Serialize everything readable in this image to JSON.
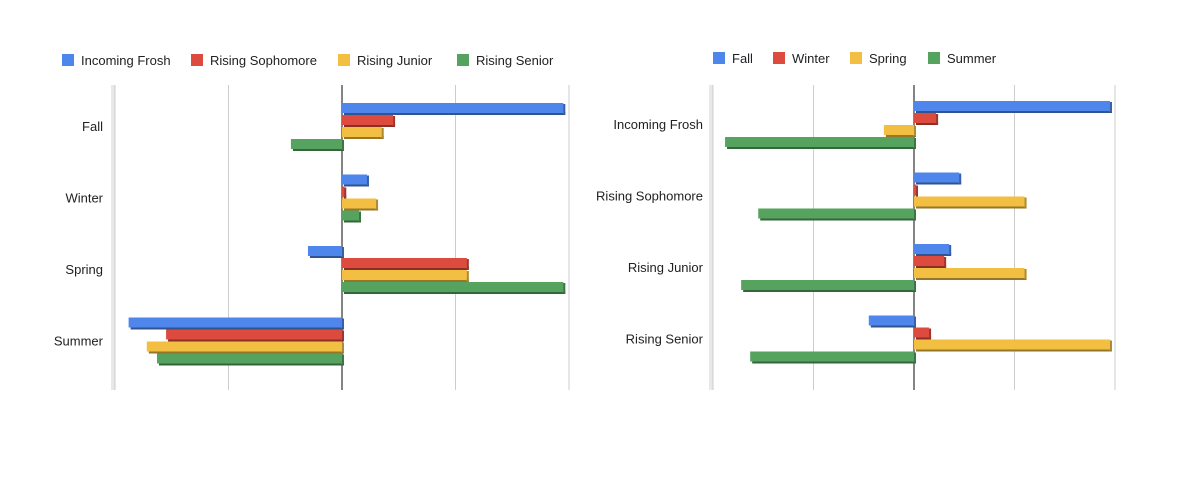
{
  "colors": {
    "blue": "#4e86ec",
    "red": "#dd4b3e",
    "yellow": "#f2bf42",
    "green": "#55a35e"
  },
  "chart_data": [
    {
      "type": "bar",
      "orientation": "horizontal",
      "style": "3d",
      "title": "",
      "xlabel": "",
      "ylabel": "",
      "legend_position": "top",
      "grid": true,
      "axis_tick_labels_shown": false,
      "xlim": [
        -2,
        2
      ],
      "categories": [
        "Fall",
        "Winter",
        "Spring",
        "Summer"
      ],
      "series": [
        {
          "name": "Incoming Frosh",
          "color": "#4e86ec",
          "values": [
            1.95,
            0.22,
            -0.3,
            -1.88
          ]
        },
        {
          "name": "Rising Sophomore",
          "color": "#dd4b3e",
          "values": [
            0.45,
            0.02,
            1.1,
            -1.55
          ]
        },
        {
          "name": "Rising Junior",
          "color": "#f2bf42",
          "values": [
            0.35,
            0.3,
            1.1,
            -1.72
          ]
        },
        {
          "name": "Rising Senior",
          "color": "#55a35e",
          "values": [
            -0.45,
            0.15,
            1.95,
            -1.63
          ]
        }
      ]
    },
    {
      "type": "bar",
      "orientation": "horizontal",
      "style": "3d",
      "title": "",
      "xlabel": "",
      "ylabel": "",
      "legend_position": "top",
      "grid": true,
      "axis_tick_labels_shown": false,
      "xlim": [
        -2,
        2
      ],
      "categories": [
        "Incoming Frosh",
        "Rising Sophomore",
        "Rising Junior",
        "Rising Senior"
      ],
      "series": [
        {
          "name": "Fall",
          "color": "#4e86ec",
          "values": [
            1.95,
            0.45,
            0.35,
            -0.45
          ]
        },
        {
          "name": "Winter",
          "color": "#dd4b3e",
          "values": [
            0.22,
            0.02,
            0.3,
            0.15
          ]
        },
        {
          "name": "Spring",
          "color": "#f2bf42",
          "values": [
            -0.3,
            1.1,
            1.1,
            1.95
          ]
        },
        {
          "name": "Summer",
          "color": "#55a35e",
          "values": [
            -1.88,
            -1.55,
            -1.72,
            -1.63
          ]
        }
      ]
    }
  ]
}
